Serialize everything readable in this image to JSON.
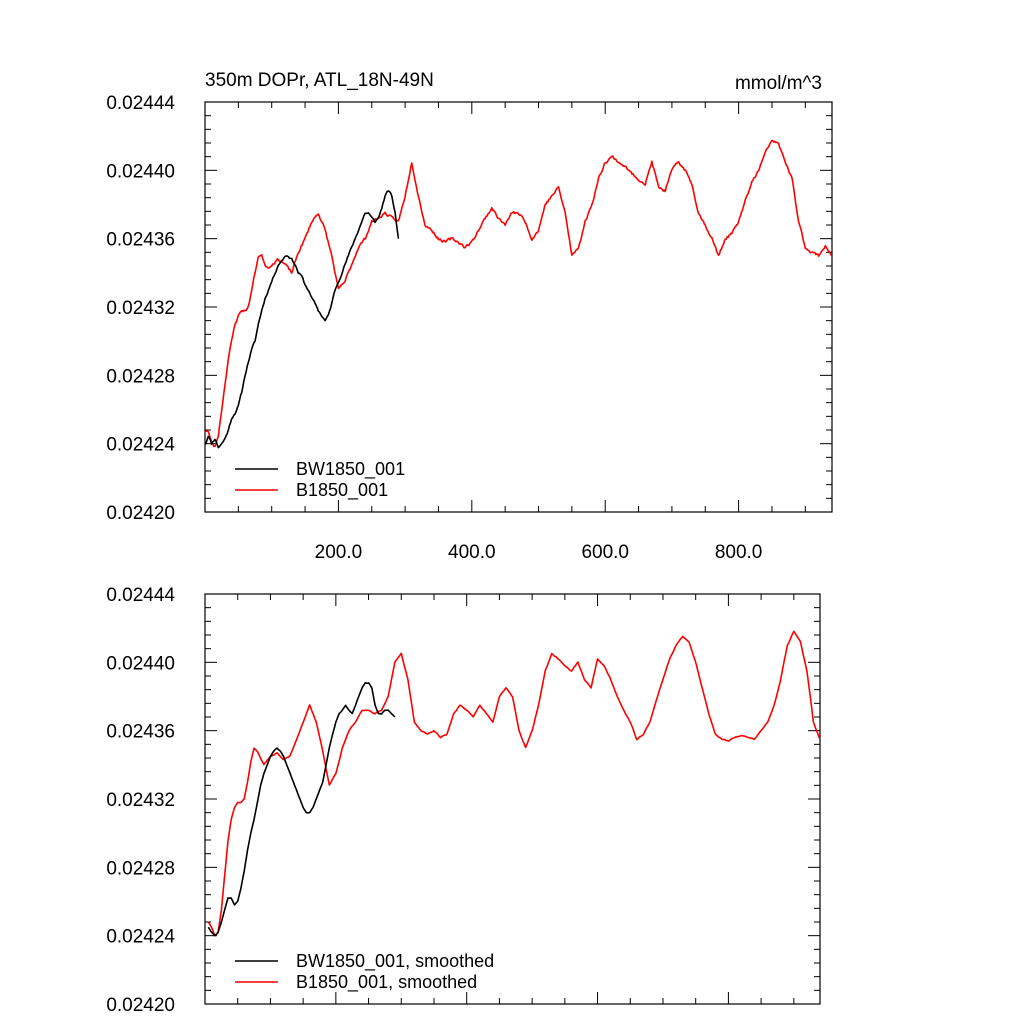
{
  "chart_data": [
    {
      "type": "line",
      "panel": "top",
      "title_left": "350m DOPr, ATL_18N-49N",
      "title_right": "mmol/m^3",
      "xlim": [
        0,
        940
      ],
      "ylim": [
        0.0242,
        0.02444
      ],
      "x_ticks": [
        200,
        400,
        600,
        800
      ],
      "x_tick_labels": [
        "200.0",
        "400.0",
        "600.0",
        "800.0"
      ],
      "y_ticks": [
        0.0242,
        0.02424,
        0.02428,
        0.02432,
        0.02436,
        0.0244,
        0.02444
      ],
      "y_tick_labels": [
        "0.02420",
        "0.02424",
        "0.02428",
        "0.02432",
        "0.02436",
        "0.02440",
        "0.02444"
      ],
      "legend_position": "bottom-left",
      "series": [
        {
          "name": "BW1850_001",
          "color": "#000000",
          "noise": 6e-07,
          "seed": 11,
          "x": [
            1,
            5,
            10,
            15,
            20,
            25,
            30,
            35,
            40,
            45,
            50,
            55,
            60,
            65,
            70,
            75,
            80,
            85,
            90,
            95,
            100,
            105,
            110,
            115,
            120,
            125,
            130,
            135,
            140,
            145,
            150,
            155,
            160,
            165,
            170,
            175,
            180,
            185,
            190,
            195,
            200,
            205,
            210,
            215,
            220,
            225,
            230,
            235,
            240,
            245,
            250,
            255,
            260,
            265,
            270,
            275,
            280,
            285,
            290
          ],
          "y": [
            0.02424,
            0.024245,
            0.02424,
            0.024243,
            0.024238,
            0.02424,
            0.024243,
            0.024248,
            0.024255,
            0.024258,
            0.024262,
            0.02427,
            0.02428,
            0.024288,
            0.024295,
            0.0243,
            0.02431,
            0.024318,
            0.024325,
            0.02433,
            0.024335,
            0.02434,
            0.024345,
            0.024347,
            0.02435,
            0.02435,
            0.024348,
            0.024345,
            0.02434,
            0.024338,
            0.024333,
            0.02433,
            0.024325,
            0.024322,
            0.024318,
            0.024315,
            0.024312,
            0.024315,
            0.024322,
            0.02433,
            0.024335,
            0.02434,
            0.024345,
            0.02435,
            0.024355,
            0.02436,
            0.024365,
            0.02437,
            0.024375,
            0.024375,
            0.024372,
            0.02437,
            0.024372,
            0.024378,
            0.024385,
            0.024388,
            0.024385,
            0.024375,
            0.02436
          ]
        },
        {
          "name": "B1850_001",
          "color": "#ff0000",
          "noise": 7e-07,
          "seed": 23,
          "x": [
            1,
            5,
            10,
            15,
            20,
            25,
            30,
            35,
            40,
            45,
            50,
            55,
            60,
            65,
            70,
            75,
            80,
            85,
            90,
            95,
            100,
            110,
            120,
            130,
            140,
            150,
            160,
            170,
            180,
            190,
            200,
            210,
            220,
            230,
            240,
            250,
            260,
            270,
            280,
            290,
            300,
            310,
            320,
            330,
            340,
            350,
            360,
            370,
            380,
            390,
            400,
            410,
            420,
            430,
            440,
            450,
            460,
            470,
            480,
            490,
            500,
            510,
            520,
            530,
            540,
            550,
            560,
            570,
            580,
            590,
            600,
            610,
            620,
            630,
            640,
            650,
            660,
            670,
            680,
            690,
            700,
            710,
            720,
            730,
            740,
            750,
            760,
            770,
            780,
            790,
            800,
            810,
            820,
            830,
            840,
            850,
            860,
            870,
            880,
            890,
            900,
            910,
            920,
            930,
            940
          ],
          "y": [
            0.024248,
            0.024247,
            0.02424,
            0.024238,
            0.024245,
            0.02426,
            0.024275,
            0.02429,
            0.0243,
            0.02431,
            0.024315,
            0.024318,
            0.024318,
            0.02432,
            0.02433,
            0.02434,
            0.02435,
            0.02435,
            0.024345,
            0.024343,
            0.024345,
            0.024348,
            0.024345,
            0.02434,
            0.024352,
            0.02436,
            0.02437,
            0.024375,
            0.024365,
            0.02435,
            0.02433,
            0.024335,
            0.024345,
            0.024355,
            0.02436,
            0.02437,
            0.024372,
            0.024375,
            0.024372,
            0.02437,
            0.024385,
            0.024405,
            0.024385,
            0.024368,
            0.024365,
            0.02436,
            0.024358,
            0.02436,
            0.024358,
            0.024355,
            0.024358,
            0.024365,
            0.024372,
            0.024378,
            0.024372,
            0.024368,
            0.024375,
            0.024375,
            0.02437,
            0.02436,
            0.024365,
            0.02438,
            0.024385,
            0.02439,
            0.024375,
            0.02435,
            0.024355,
            0.02437,
            0.02438,
            0.024395,
            0.024405,
            0.024408,
            0.024405,
            0.024402,
            0.024398,
            0.024395,
            0.024392,
            0.024405,
            0.02439,
            0.024388,
            0.0244,
            0.024405,
            0.0244,
            0.024392,
            0.024375,
            0.024368,
            0.02436,
            0.02435,
            0.02436,
            0.024363,
            0.02437,
            0.024382,
            0.024393,
            0.0244,
            0.02441,
            0.024418,
            0.024415,
            0.024405,
            0.024395,
            0.02437,
            0.024355,
            0.024352,
            0.02435,
            0.024356,
            0.02435
          ]
        }
      ]
    },
    {
      "type": "line",
      "panel": "bottom",
      "xlim": [
        0,
        940
      ],
      "ylim": [
        0.0242,
        0.02444
      ],
      "x_ticks": [
        200,
        400,
        600,
        800
      ],
      "y_ticks": [
        0.0242,
        0.02424,
        0.02428,
        0.02432,
        0.02436,
        0.0244,
        0.02444
      ],
      "y_tick_labels": [
        "0.02420",
        "0.02424",
        "0.02428",
        "0.02432",
        "0.02436",
        "0.02440",
        "0.02444"
      ],
      "legend_position": "bottom-left",
      "series": [
        {
          "name": "BW1850_001, smoothed",
          "color": "#000000",
          "noise": 1.5e-07,
          "seed": 5,
          "x": [
            5,
            10,
            15,
            20,
            25,
            30,
            35,
            40,
            45,
            50,
            55,
            60,
            65,
            70,
            75,
            80,
            85,
            90,
            95,
            100,
            105,
            110,
            115,
            120,
            125,
            130,
            135,
            140,
            145,
            150,
            155,
            160,
            165,
            170,
            175,
            180,
            185,
            190,
            195,
            200,
            205,
            210,
            215,
            220,
            225,
            230,
            235,
            240,
            245,
            250,
            255,
            260,
            265,
            270,
            275,
            280,
            285,
            290
          ],
          "y": [
            0.024245,
            0.024242,
            0.02424,
            0.024242,
            0.024248,
            0.024255,
            0.024262,
            0.024262,
            0.024258,
            0.02426,
            0.024268,
            0.024278,
            0.02429,
            0.0243,
            0.024308,
            0.024318,
            0.024328,
            0.024335,
            0.02434,
            0.024345,
            0.024348,
            0.02435,
            0.024348,
            0.024345,
            0.02434,
            0.024335,
            0.02433,
            0.024325,
            0.02432,
            0.024315,
            0.024312,
            0.024312,
            0.024315,
            0.02432,
            0.024325,
            0.02433,
            0.02434,
            0.02435,
            0.024358,
            0.024365,
            0.02437,
            0.024372,
            0.024375,
            0.024372,
            0.02437,
            0.024375,
            0.02438,
            0.024385,
            0.024388,
            0.024388,
            0.024385,
            0.024375,
            0.02437,
            0.02437,
            0.024372,
            0.024372,
            0.02437,
            0.024368
          ]
        },
        {
          "name": "B1850_001, smoothed",
          "color": "#ff0000",
          "noise": 2e-07,
          "seed": 17,
          "x": [
            5,
            10,
            15,
            20,
            25,
            30,
            35,
            40,
            45,
            50,
            55,
            60,
            65,
            70,
            75,
            80,
            90,
            100,
            110,
            120,
            130,
            140,
            150,
            160,
            170,
            180,
            190,
            200,
            210,
            220,
            230,
            240,
            250,
            260,
            270,
            280,
            290,
            300,
            310,
            320,
            330,
            340,
            350,
            360,
            370,
            380,
            390,
            400,
            410,
            420,
            430,
            440,
            450,
            460,
            470,
            480,
            490,
            500,
            510,
            520,
            530,
            540,
            550,
            560,
            570,
            580,
            590,
            600,
            610,
            620,
            630,
            640,
            650,
            660,
            670,
            680,
            690,
            700,
            710,
            720,
            730,
            740,
            750,
            760,
            770,
            780,
            790,
            800,
            810,
            820,
            830,
            840,
            850,
            860,
            870,
            880,
            890,
            900,
            910,
            920,
            930,
            940
          ],
          "y": [
            0.024248,
            0.024245,
            0.02424,
            0.024242,
            0.024255,
            0.024275,
            0.024295,
            0.024308,
            0.024315,
            0.024318,
            0.024318,
            0.02432,
            0.02433,
            0.024342,
            0.02435,
            0.024348,
            0.02434,
            0.024345,
            0.024347,
            0.024343,
            0.024345,
            0.024355,
            0.024365,
            0.024375,
            0.024365,
            0.024348,
            0.024328,
            0.024335,
            0.02435,
            0.02436,
            0.024365,
            0.024372,
            0.024372,
            0.02437,
            0.024372,
            0.02438,
            0.0244,
            0.024405,
            0.02439,
            0.024365,
            0.02436,
            0.024358,
            0.02436,
            0.024356,
            0.024358,
            0.02437,
            0.024375,
            0.024372,
            0.024368,
            0.024375,
            0.02437,
            0.024365,
            0.02438,
            0.024385,
            0.02438,
            0.02436,
            0.02435,
            0.02436,
            0.024375,
            0.024395,
            0.024405,
            0.024402,
            0.024398,
            0.024395,
            0.0244,
            0.02439,
            0.024385,
            0.024402,
            0.024398,
            0.02439,
            0.02438,
            0.024372,
            0.024365,
            0.024355,
            0.024358,
            0.024365,
            0.024378,
            0.02439,
            0.024402,
            0.02441,
            0.024415,
            0.024412,
            0.0244,
            0.024385,
            0.02437,
            0.024358,
            0.024355,
            0.024354,
            0.024356,
            0.024357,
            0.024356,
            0.024355,
            0.02436,
            0.024365,
            0.024375,
            0.02439,
            0.02441,
            0.024418,
            0.024412,
            0.024395,
            0.024365,
            0.024355
          ]
        }
      ]
    }
  ]
}
